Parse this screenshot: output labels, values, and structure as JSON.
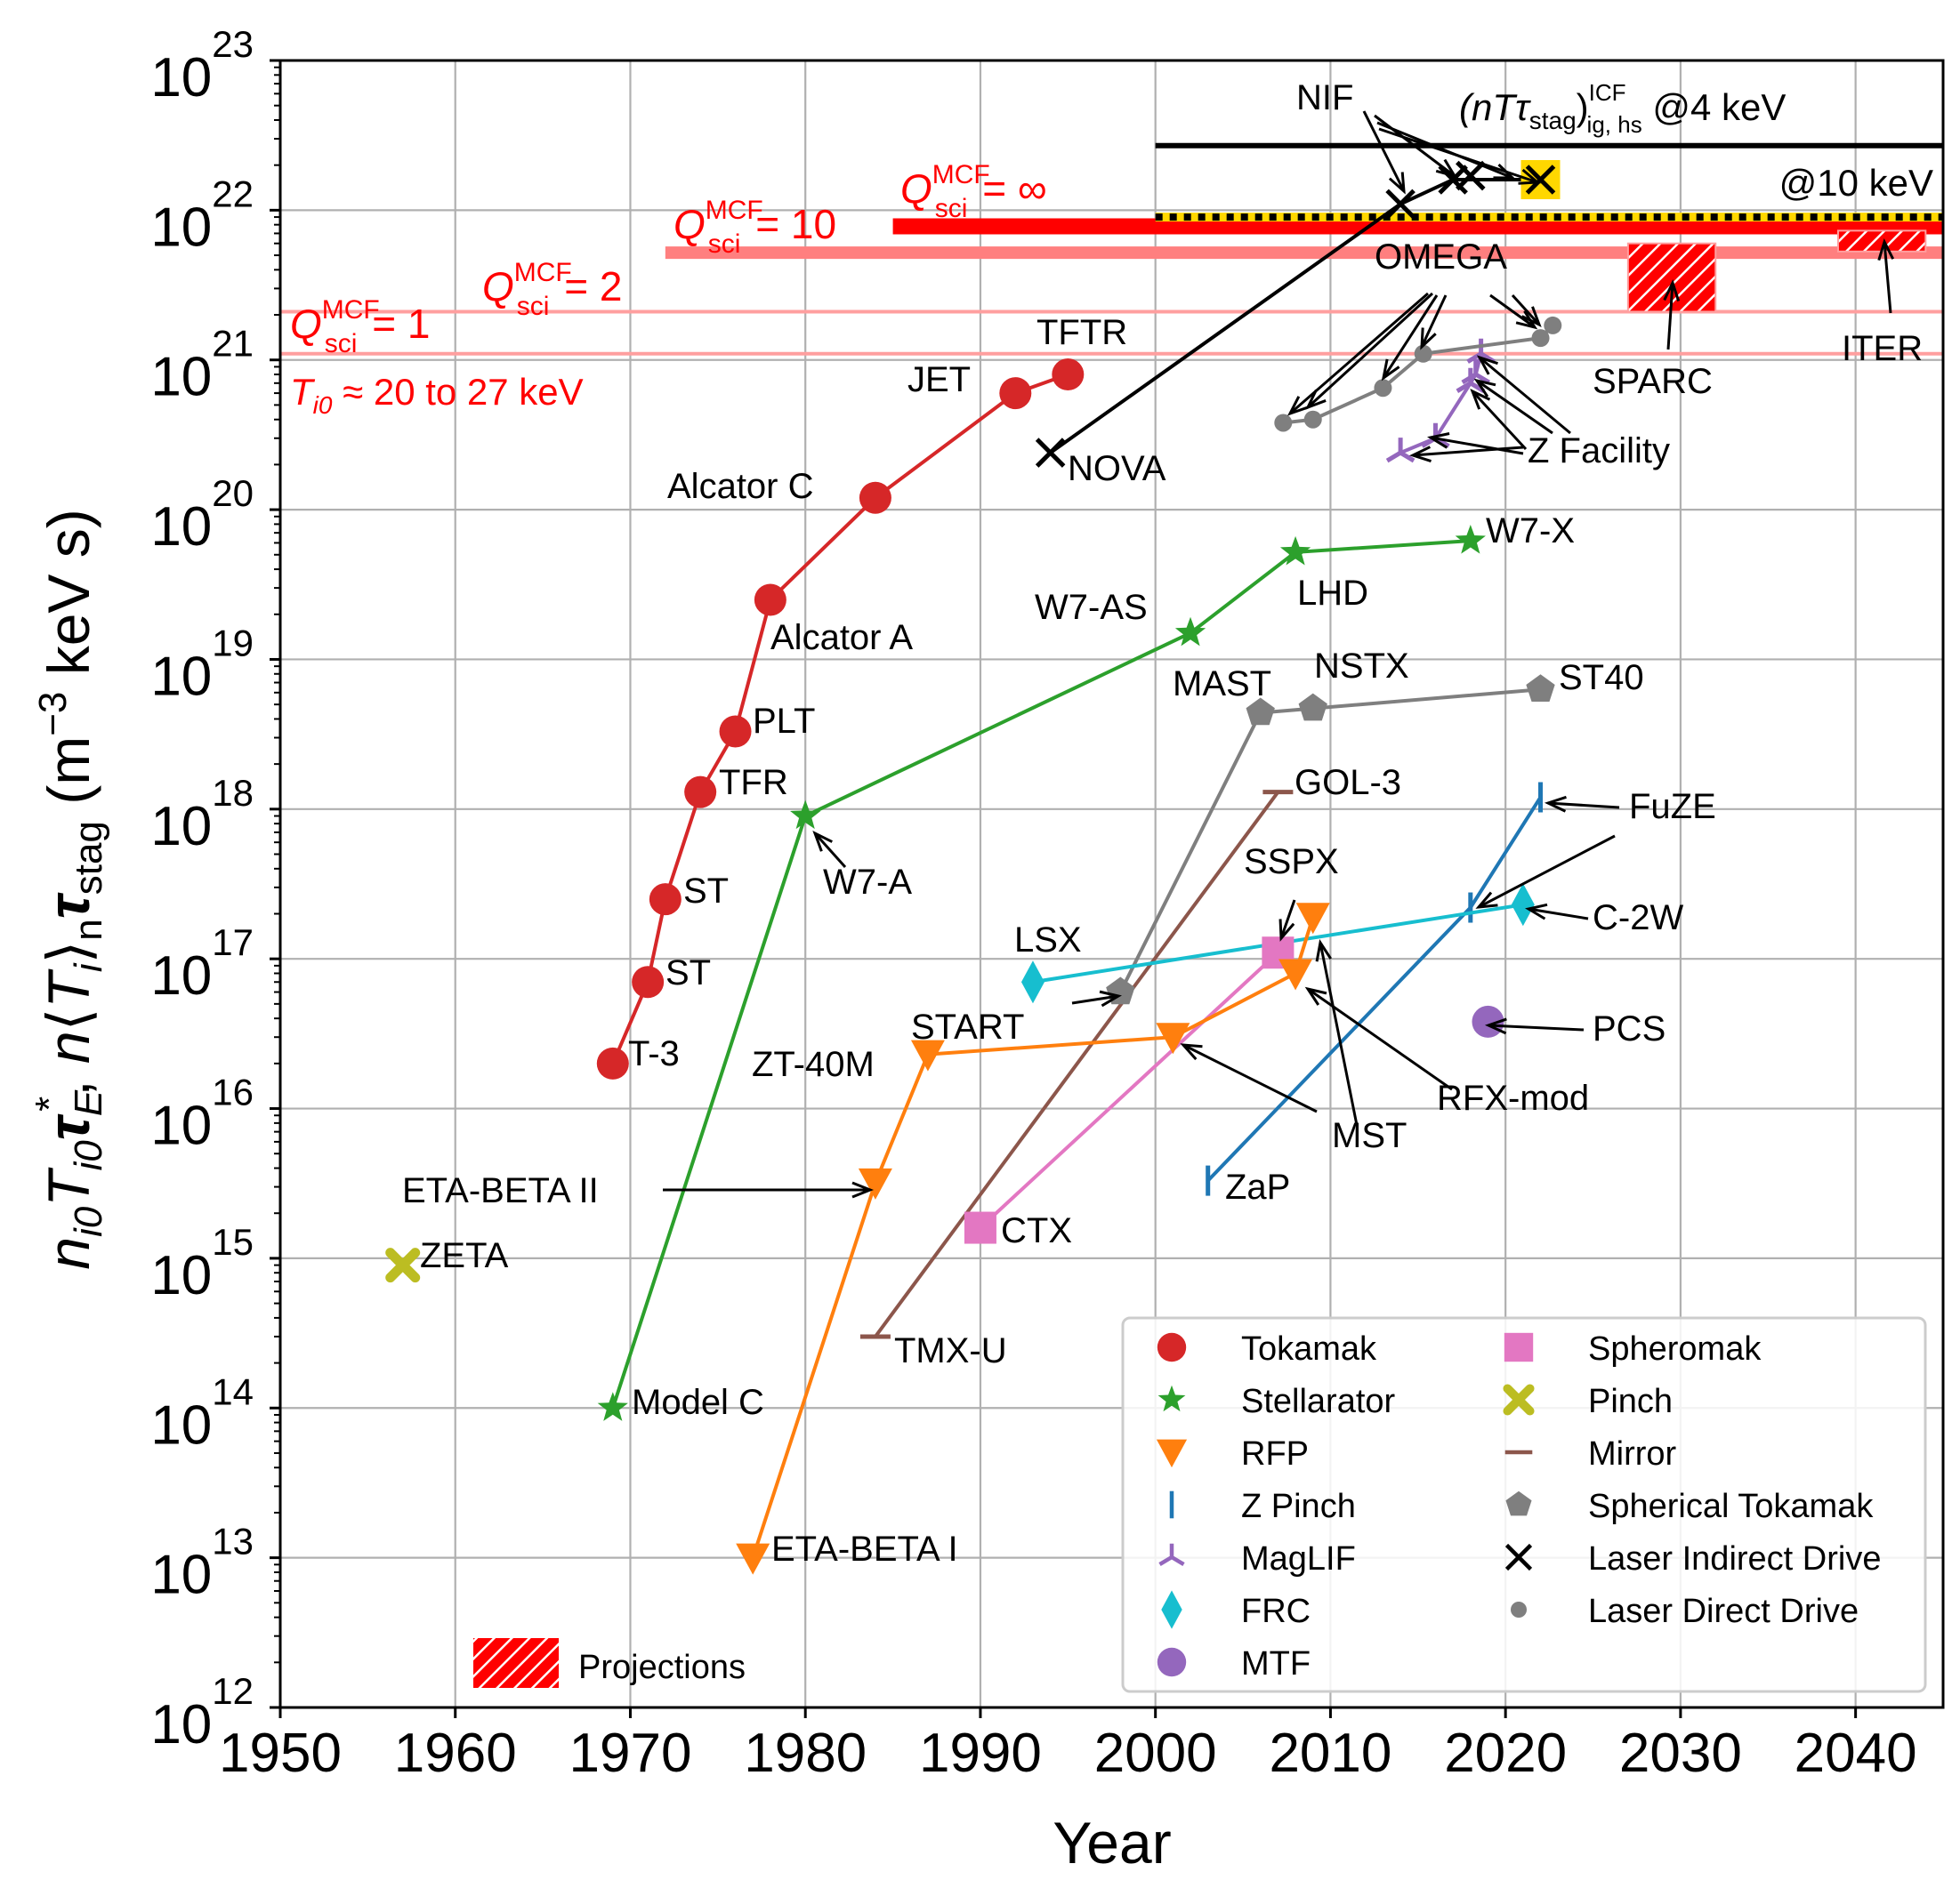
{
  "chart_data": {
    "type": "scatter",
    "title": "",
    "xlabel": "Year",
    "ylabel": "n_i0 T_i0 τ_E*, n⟨T_i⟩_n τ_stag (m⁻³ keV s)",
    "ylabel_parts": {
      "n": "n",
      "i0": "i0",
      "T": "T",
      "tau": "τ",
      "E": "E",
      "star": "*",
      "comma": ",",
      "lang": "⟨",
      "Ti": "T",
      "i": "i",
      "rang": "⟩",
      "sub_n": "n",
      "stag": "stag",
      "units": "(m",
      "units_exp": "−3",
      "units_tail": " keV s)"
    },
    "xlim": [
      1950,
      2045
    ],
    "ylim_log10": [
      12,
      23
    ],
    "x_ticks": [
      1950,
      1960,
      1970,
      1980,
      1990,
      2000,
      2010,
      2020,
      2030,
      2040
    ],
    "y_ticks": [
      {
        "base": "10",
        "exp": "12",
        "value": 12
      },
      {
        "base": "10",
        "exp": "13",
        "value": 13
      },
      {
        "base": "10",
        "exp": "14",
        "value": 14
      },
      {
        "base": "10",
        "exp": "15",
        "value": 15
      },
      {
        "base": "10",
        "exp": "16",
        "value": 16
      },
      {
        "base": "10",
        "exp": "17",
        "value": 17
      },
      {
        "base": "10",
        "exp": "18",
        "value": 18
      },
      {
        "base": "10",
        "exp": "19",
        "value": 19
      },
      {
        "base": "10",
        "exp": "20",
        "value": 20
      },
      {
        "base": "10",
        "exp": "21",
        "value": 21
      },
      {
        "base": "10",
        "exp": "22",
        "value": 22
      },
      {
        "base": "10",
        "exp": "23",
        "value": 23
      }
    ],
    "grid": true,
    "colors": {
      "tokamak": "#d62728",
      "stellarator": "#2ca02c",
      "rfp": "#ff7f0e",
      "zpinch": "#1f77b4",
      "maglif": "#9467bd",
      "frc": "#17becf",
      "mtf": "#9467bd",
      "spheromak": "#e377c2",
      "pinch": "#bcbd22",
      "mirror": "#8c564b",
      "st": "#7f7f7f",
      "lid": "#000000",
      "ldd": "#7f7f7f",
      "red": "#ff0000",
      "pink": "#ff7f7f",
      "lightpink": "#ff9f9f",
      "gold": "#ffd700"
    },
    "series": [
      {
        "name": "Tokamak",
        "marker": "circle",
        "color": "#d62728",
        "connected": true,
        "points": [
          {
            "x": 1969,
            "y": 2e+16,
            "label": "T-3"
          },
          {
            "x": 1971,
            "y": 7e+16,
            "label": "ST"
          },
          {
            "x": 1972,
            "y": 2.5e+17,
            "label": "ST"
          },
          {
            "x": 1974,
            "y": 1.3e+18,
            "label": "TFR"
          },
          {
            "x": 1976,
            "y": 3.3e+18,
            "label": "PLT"
          },
          {
            "x": 1978,
            "y": 2.5e+19,
            "label": "Alcator A"
          },
          {
            "x": 1984,
            "y": 1.2e+20,
            "label": "Alcator C"
          },
          {
            "x": 1992,
            "y": 6e+20,
            "label": "JET"
          },
          {
            "x": 1995,
            "y": 8e+20,
            "label": "TFTR"
          }
        ]
      },
      {
        "name": "Stellarator",
        "marker": "star",
        "color": "#2ca02c",
        "connected": true,
        "points": [
          {
            "x": 1969,
            "y": 100000000000000.0,
            "label": "Model C"
          },
          {
            "x": 1980,
            "y": 9e+17,
            "label": "W7-A"
          },
          {
            "x": 2002,
            "y": 1.5e+19,
            "label": "W7-AS"
          },
          {
            "x": 2008,
            "y": 5.2e+19,
            "label": "LHD"
          },
          {
            "x": 2018,
            "y": 6.2e+19,
            "label": "W7-X"
          }
        ]
      },
      {
        "name": "RFP",
        "marker": "triangle-down",
        "color": "#ff7f0e",
        "connected": true,
        "points": [
          {
            "x": 1977,
            "y": 10000000000000.0,
            "label": "ETA-BETA I"
          },
          {
            "x": 1984,
            "y": 3200000000000000.0,
            "label": "ETA-BETA II"
          },
          {
            "x": 1987,
            "y": 2.3e+16,
            "label": "ZT-40M"
          },
          {
            "x": 2001,
            "y": 3e+16,
            "label": "RFX-mod"
          },
          {
            "x": 2008,
            "y": 8e+16,
            "label": "RFX-mod"
          },
          {
            "x": 2009,
            "y": 1.9e+17,
            "label": "MST"
          }
        ]
      },
      {
        "name": "Z Pinch",
        "marker": "vline",
        "color": "#1f77b4",
        "connected": true,
        "points": [
          {
            "x": 2003,
            "y": 3300000000000000.0,
            "label": "ZaP"
          },
          {
            "x": 2018,
            "y": 2.2e+17,
            "label": "FuZE"
          },
          {
            "x": 2022,
            "y": 1.2e+18,
            "label": "FuZE"
          }
        ]
      },
      {
        "name": "MagLIF",
        "marker": "tri",
        "color": "#9467bd",
        "connected": true,
        "points": [
          {
            "x": 2014,
            "y": 2.4e+20,
            "label": "Z Facility"
          },
          {
            "x": 2016,
            "y": 3e+20,
            "label": "Z Facility"
          },
          {
            "x": 2018,
            "y": 7e+20,
            "label": "Z Facility"
          },
          {
            "x": 2018.3,
            "y": 8e+20,
            "label": "Z Facility"
          },
          {
            "x": 2018.6,
            "y": 1.1e+21,
            "label": "Z Facility"
          }
        ]
      },
      {
        "name": "FRC",
        "marker": "diamond",
        "color": "#17becf",
        "connected": true,
        "points": [
          {
            "x": 1993,
            "y": 7e+16,
            "label": "LSX"
          },
          {
            "x": 2021,
            "y": 2.3e+17,
            "label": "C-2W"
          }
        ]
      },
      {
        "name": "MTF",
        "marker": "circle",
        "color": "#9467bd",
        "connected": false,
        "points": [
          {
            "x": 2019,
            "y": 3.8e+16,
            "label": "PCS"
          }
        ]
      },
      {
        "name": "Spheromak",
        "marker": "square",
        "color": "#e377c2",
        "connected": true,
        "points": [
          {
            "x": 1990,
            "y": 1600000000000000.0,
            "label": "CTX"
          },
          {
            "x": 2007,
            "y": 1.1e+17,
            "label": "SSPX"
          }
        ]
      },
      {
        "name": "Pinch",
        "marker": "xfilled",
        "color": "#bcbd22",
        "connected": false,
        "points": [
          {
            "x": 1957,
            "y": 900000000000000.0,
            "label": "ZETA"
          }
        ]
      },
      {
        "name": "Mirror",
        "marker": "hline",
        "color": "#8c564b",
        "connected": true,
        "points": [
          {
            "x": 1984,
            "y": 300000000000000.0,
            "label": "TMX-U"
          },
          {
            "x": 2007,
            "y": 1.3e+18,
            "label": "GOL-3"
          }
        ]
      },
      {
        "name": "Spherical Tokamak",
        "marker": "pentagon",
        "color": "#7f7f7f",
        "connected": true,
        "points": [
          {
            "x": 1998,
            "y": 6e+16,
            "label": "START"
          },
          {
            "x": 2006,
            "y": 4.4e+18,
            "label": "MAST"
          },
          {
            "x": 2009,
            "y": 4.7e+18,
            "label": "NSTX"
          },
          {
            "x": 2022,
            "y": 6.3e+18,
            "label": "ST40"
          }
        ]
      },
      {
        "name": "Laser Indirect Drive",
        "marker": "x",
        "color": "#000000",
        "connected": true,
        "points": [
          {
            "x": 1994,
            "y": 2.4e+20,
            "label": "NOVA"
          },
          {
            "x": 2014,
            "y": 1.1e+22,
            "label": "NIF"
          },
          {
            "x": 2017,
            "y": 1.6e+22,
            "label": "NIF"
          },
          {
            "x": 2018,
            "y": 1.7e+22,
            "label": "NIF"
          },
          {
            "x": 2022,
            "y": 1.6e+22,
            "label": "NIF"
          }
        ]
      },
      {
        "name": "Laser Direct Drive",
        "marker": "dot",
        "color": "#7f7f7f",
        "connected": true,
        "points": [
          {
            "x": 2007.3,
            "y": 3.8e+20,
            "label": "OMEGA"
          },
          {
            "x": 2009,
            "y": 4e+20,
            "label": "OMEGA"
          },
          {
            "x": 2013,
            "y": 6.5e+20,
            "label": "OMEGA"
          },
          {
            "x": 2015.3,
            "y": 1.1e+21,
            "label": "OMEGA"
          },
          {
            "x": 2022,
            "y": 1.4e+21,
            "label": "OMEGA"
          },
          {
            "x": 2022.7,
            "y": 1.7e+21,
            "label": "OMEGA"
          }
        ]
      }
    ],
    "point_labels": [
      "T-3",
      "ST",
      "ST",
      "TFR",
      "PLT",
      "Alcator A",
      "Alcator C",
      "JET",
      "TFTR",
      "Model C",
      "W7-A",
      "W7-AS",
      "LHD",
      "W7-X",
      "ETA-BETA I",
      "ETA-BETA II",
      "ZT-40M",
      "RFX-mod",
      "MST",
      "ZaP",
      "FuZE",
      "Z Facility",
      "LSX",
      "C-2W",
      "PCS",
      "CTX",
      "SSPX",
      "ZETA",
      "TMX-U",
      "GOL-3",
      "START",
      "MAST",
      "NSTX",
      "ST40",
      "NOVA",
      "NIF",
      "OMEGA",
      "SPARC",
      "ITER"
    ],
    "reference_lines": [
      {
        "label_main": "Q",
        "label_sup": "MCF",
        "label_sub": "sci",
        "label_tail": " = 1",
        "y": 1.1e+21,
        "x_start": 1950,
        "color": "#ff9f9f"
      },
      {
        "label_main": "Q",
        "label_sup": "MCF",
        "label_sub": "sci",
        "label_tail": " = 2",
        "y": 2.1e+21,
        "x_start": 1950,
        "color": "#ff9f9f"
      },
      {
        "label_main": "Q",
        "label_sup": "MCF",
        "label_sub": "sci",
        "label_tail": " = 10",
        "y": 5.2e+21,
        "x_start": 1972,
        "color": "#ff7f7f"
      },
      {
        "label_main": "Q",
        "label_sup": "MCF",
        "label_sub": "sci",
        "label_tail": " = ∞",
        "y": 7.8e+21,
        "x_start": 1985,
        "color": "#ff0000"
      }
    ],
    "ti_note": {
      "T": "T",
      "sub": "i0",
      "text": " ≈ 20 to 27 keV"
    },
    "icf_lines": [
      {
        "label": "@4 keV",
        "prefix": "(nTτ",
        "prefix_sub": "stag",
        "close": ")",
        "sup": "ICF",
        "sub": "ig, hs",
        "y": 2.7e+22,
        "x_start": 2000
      },
      {
        "label": "@10 keV",
        "y": 9e+21,
        "x_start": 2000
      }
    ],
    "projections": [
      {
        "name": "SPARC",
        "x0": 2027,
        "x1": 2032,
        "y0": 2.1e+21,
        "y1": 6e+21
      },
      {
        "name": "ITER",
        "x0": 2039,
        "x1": 2044,
        "y0": 5.3e+21,
        "y1": 7.3e+21
      }
    ],
    "legend": {
      "placement": "lower-right",
      "entries": [
        "Tokamak",
        "Stellarator",
        "RFP",
        "Z Pinch",
        "MagLIF",
        "FRC",
        "MTF",
        "Spheromak",
        "Pinch",
        "Mirror",
        "Spherical Tokamak",
        "Laser Indirect Drive",
        "Laser Direct Drive"
      ],
      "projections_label": "Projections"
    }
  }
}
